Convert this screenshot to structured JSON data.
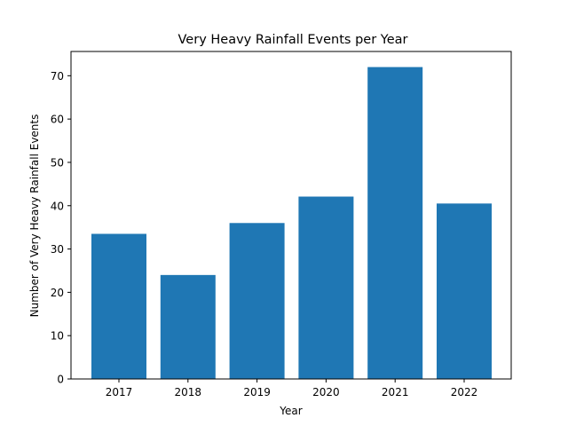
{
  "chart_data": {
    "type": "bar",
    "title": "Very Heavy Rainfall Events per Year",
    "xlabel": "Year",
    "ylabel": "Number of Very Heavy Rainfall Events",
    "categories": [
      "2017",
      "2018",
      "2019",
      "2020",
      "2021",
      "2022"
    ],
    "values": [
      33.5,
      24,
      36,
      42.1,
      72,
      40.5
    ],
    "ylim": [
      0,
      75.6
    ],
    "yticks": [
      0,
      10,
      20,
      30,
      40,
      50,
      60,
      70
    ],
    "grid": false,
    "legend": "none",
    "bar_color": "#1f77b4"
  }
}
